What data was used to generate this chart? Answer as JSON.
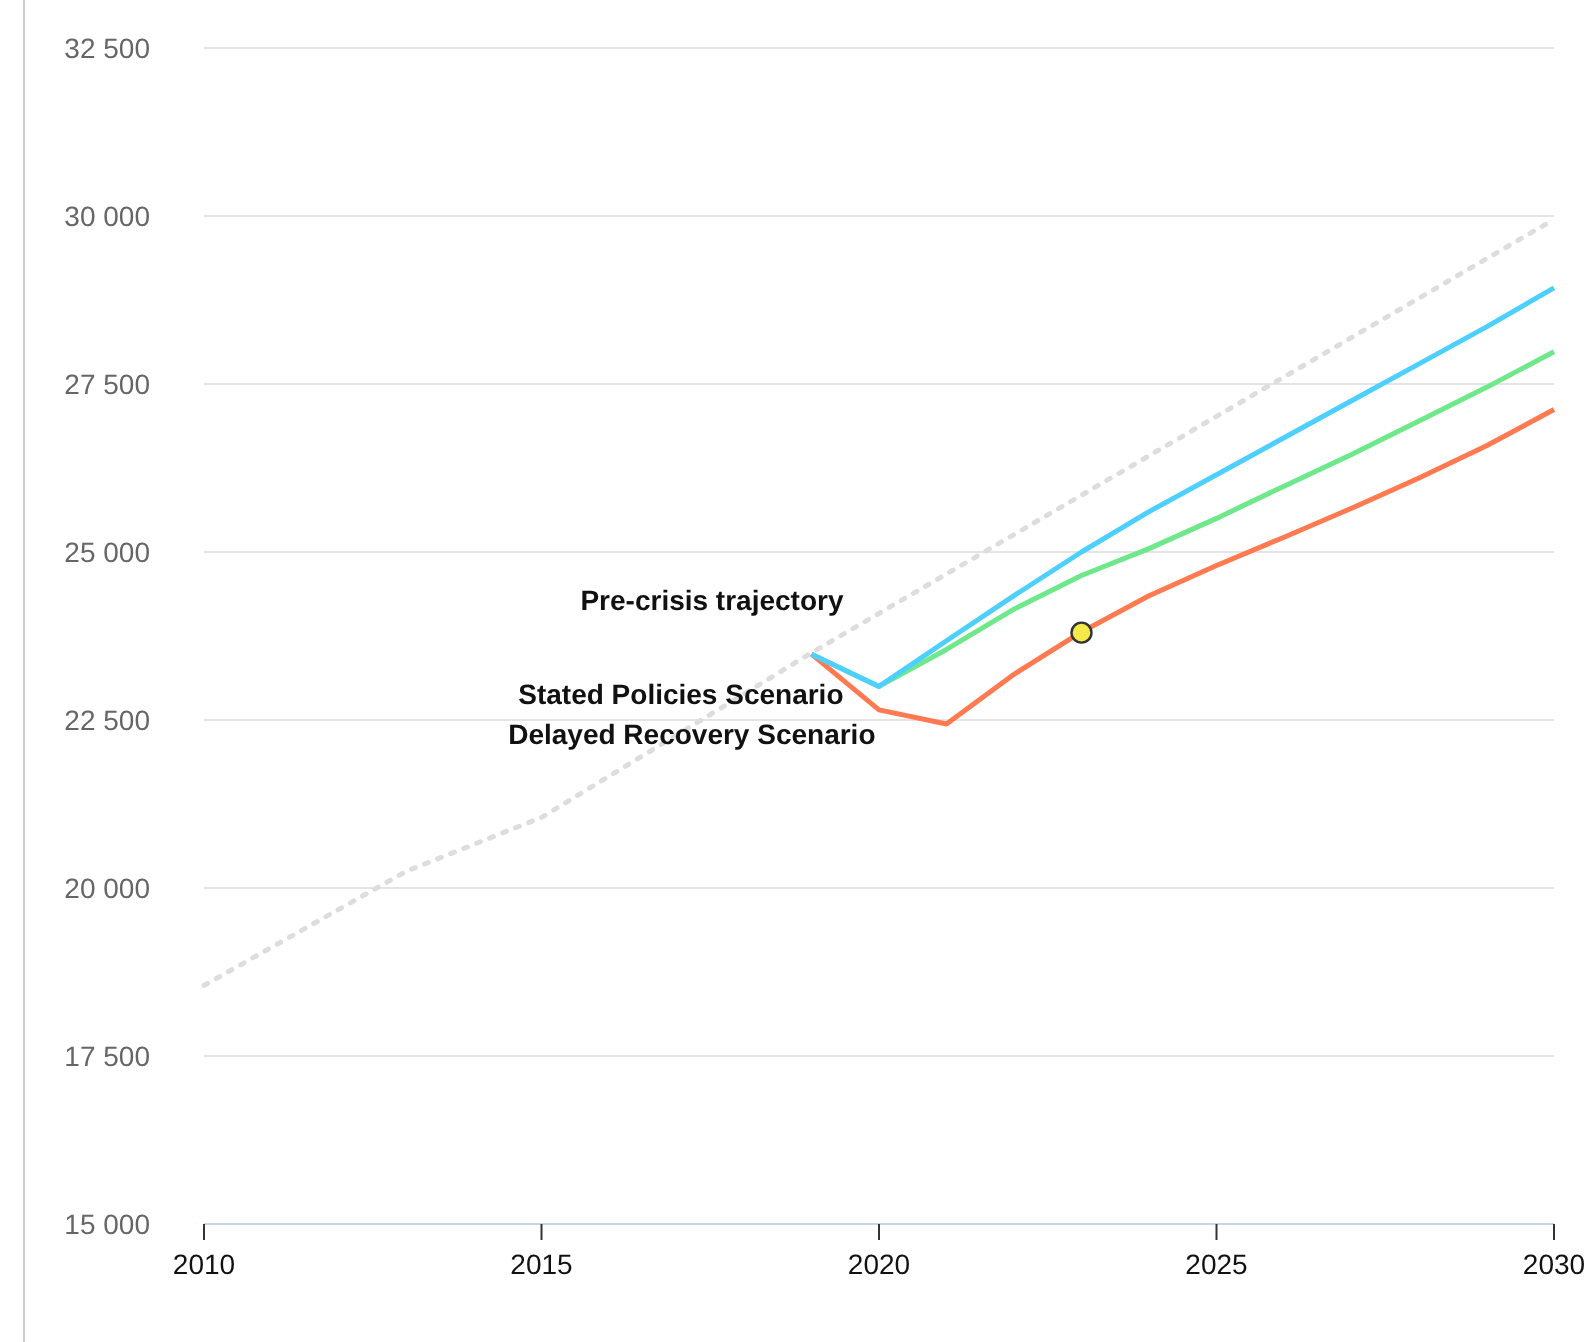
{
  "chart_data": {
    "type": "line",
    "xlim": [
      2010,
      2030
    ],
    "xticks": [
      2010,
      2015,
      2020,
      2025,
      2030
    ],
    "ylim": [
      15000,
      32500
    ],
    "yticks": [
      {
        "value": 15000,
        "label": "15 000"
      },
      {
        "value": 17500,
        "label": "17 500"
      },
      {
        "value": 20000,
        "label": "20 000"
      },
      {
        "value": 22500,
        "label": "22 500"
      },
      {
        "value": 25000,
        "label": "25 000"
      },
      {
        "value": 27500,
        "label": "27 500"
      },
      {
        "value": 30000,
        "label": "30 000"
      },
      {
        "value": 32500,
        "label": "32 500"
      }
    ],
    "grid": "y",
    "series": [
      {
        "name": "Pre-crisis trajectory",
        "color": "#dddddd",
        "line_style": "dotted",
        "x": [
          2010,
          2013,
          2015,
          2019,
          2030
        ],
        "values": [
          18550,
          20250,
          21050,
          23500,
          29950
        ]
      },
      {
        "name": "Stated Policies Scenario",
        "color": "#6ee88a",
        "x": [
          2019,
          2020,
          2021,
          2022,
          2023,
          2024,
          2025,
          2026,
          2027,
          2028,
          2029,
          2030
        ],
        "values": [
          23480,
          23000,
          23550,
          24150,
          24650,
          25050,
          25500,
          25980,
          26450,
          26950,
          27450,
          27980
        ]
      },
      {
        "name": "Delayed Recovery Scenario",
        "color": "#ff7a50",
        "x": [
          2019,
          2020,
          2021,
          2022,
          2023,
          2024,
          2025,
          2026,
          2027,
          2028,
          2029,
          2030
        ],
        "values": [
          23480,
          22650,
          22440,
          23180,
          23810,
          24350,
          24800,
          25220,
          25650,
          26100,
          26580,
          27120
        ]
      },
      {
        "color": "#4dcfff",
        "x": [
          2019,
          2020,
          2021,
          2022,
          2023,
          2024,
          2025,
          2026,
          2027,
          2028,
          2029,
          2030
        ],
        "values": [
          23480,
          23000,
          23680,
          24350,
          25000,
          25600,
          26150,
          26700,
          27250,
          27800,
          28350,
          28930
        ]
      },
      {
        "type": "scatter",
        "color": "#f5e94a",
        "marker": "circle",
        "x": [
          2023
        ],
        "values": [
          23800
        ]
      }
    ]
  }
}
